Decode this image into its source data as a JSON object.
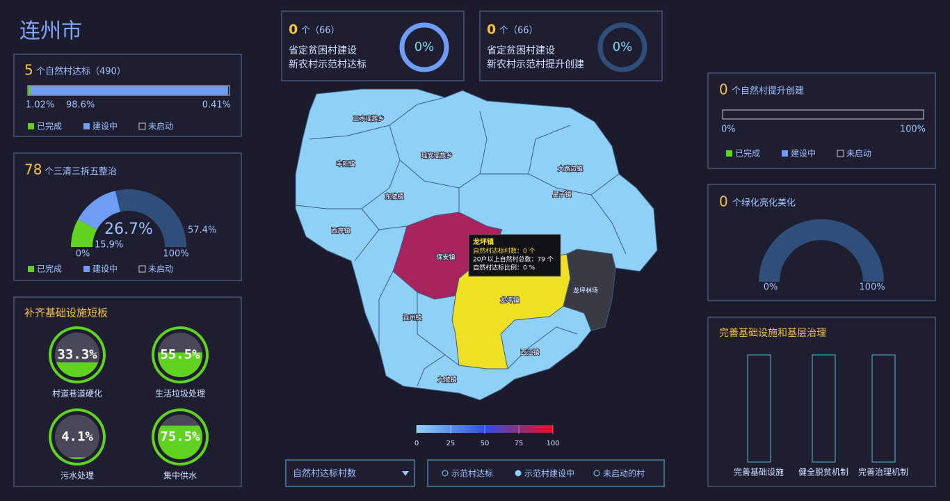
{
  "title": "连州市",
  "legend_labels": [
    "已完成",
    "建设中",
    "未启动"
  ],
  "natural_village": {
    "count": 5,
    "label": "个自然村达标（490）",
    "values": [
      1.02,
      98.6,
      0.41
    ],
    "value_labels": [
      "1.02%",
      "98.6%",
      "0.41%"
    ],
    "xlim": [
      0,
      100
    ]
  },
  "sanqing": {
    "count": 78,
    "label": "个三清三拆五整治",
    "values": [
      15.9,
      26.7,
      57.4
    ],
    "value_labels": [
      "15.9%",
      "26.7%",
      "57.4%"
    ],
    "ticks": [
      {
        "value": 0,
        "label": "0%"
      },
      {
        "value": 100,
        "label": "100%"
      }
    ]
  },
  "infrastructure": {
    "title": "补齐基础设施短板",
    "items": [
      {
        "name": "村道巷道硬化",
        "value": 33.3,
        "value_label": "33.3%"
      },
      {
        "name": "生活垃圾处理",
        "value": 55.5,
        "value_label": "55.5%"
      },
      {
        "name": "污水处理",
        "value": 4.1,
        "value_label": "4.1%"
      },
      {
        "name": "集中供水",
        "value": 75.5,
        "value_label": "75.5%"
      }
    ]
  },
  "top_cards": [
    {
      "count": 0,
      "total_label": "个（66）",
      "line1": "省定贫困村建设",
      "line2": "新农村示范村达标",
      "value": 0,
      "value_label": "0%"
    },
    {
      "count": 0,
      "total_label": "个（66）",
      "line1": "省定贫困村建设",
      "line2": "新农村示范村提升创建",
      "value": 0,
      "value_label": "0%"
    }
  ],
  "upgrade": {
    "count": 0,
    "label": "个自然村提升创建",
    "values": [
      0,
      0
    ],
    "ticks": [
      {
        "value": 0,
        "label": "0%"
      },
      {
        "value": 100,
        "label": "100%"
      }
    ]
  },
  "greening": {
    "count": 0,
    "label": "个绿化亮化美化",
    "value": 0,
    "ticks": [
      {
        "value": 0,
        "label": "0%"
      },
      {
        "value": 100,
        "label": "100%"
      }
    ]
  },
  "governance": {
    "title": "完善基础设施和基层治理",
    "categories": [
      "完善基础设施",
      "健全脱贫机制",
      "完善治理机制"
    ],
    "values": [
      0,
      0,
      0
    ],
    "ylim": [
      0,
      100
    ]
  },
  "map": {
    "regions": [
      "三水瑶族乡",
      "丰阳镇",
      "瑶安瑶族乡",
      "大路边镇",
      "东陂镇",
      "星子镇",
      "西岸镇",
      "保安镇",
      "龙坪镇",
      "连州镇",
      "龙坪林场",
      "西江镇",
      "九陂镇"
    ],
    "tooltip": {
      "title": "龙坪镇",
      "lines": [
        "自然村达标村数：0 个",
        "20户以上自然村总数：79 个",
        "自然村达标比例：0 %"
      ]
    },
    "colorbar": {
      "lim": [
        0,
        100
      ],
      "ticks": [
        0,
        25,
        50,
        75,
        100
      ]
    }
  },
  "controls": {
    "dropdown": "自然村达标村数",
    "legend": [
      "示范村达标",
      "示范村建设中",
      "未启动的村"
    ]
  }
}
